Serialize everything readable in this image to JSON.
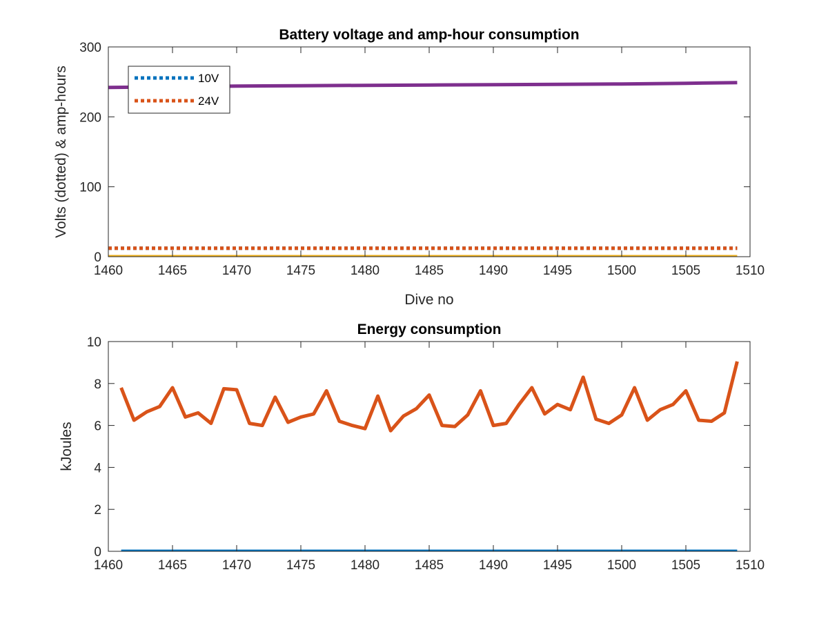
{
  "chart_data": [
    {
      "type": "line",
      "title": "Battery voltage and amp-hour consumption",
      "xlabel": "Dive no",
      "ylabel": "Volts (dotted) & amp-hours",
      "xlim": [
        1460,
        1510
      ],
      "ylim": [
        0,
        300
      ],
      "xticks": [
        1460,
        1465,
        1470,
        1475,
        1480,
        1485,
        1490,
        1495,
        1500,
        1505,
        1510
      ],
      "yticks": [
        0,
        100,
        200,
        300
      ],
      "grid": false,
      "legend": {
        "placement": "top-left",
        "entries": [
          "10V",
          "24V"
        ]
      },
      "series": [
        {
          "name": "10V",
          "style": "dotted",
          "color": "#0072BD",
          "x": [
            1460,
            1509
          ],
          "y": [
            12,
            12
          ]
        },
        {
          "name": "24V",
          "style": "dotted",
          "color": "#D95319",
          "x": [
            1460,
            1509
          ],
          "y": [
            12,
            12
          ]
        },
        {
          "style": "solid",
          "color": "#EDB120",
          "x": [
            1460,
            1509
          ],
          "y": [
            0,
            0
          ]
        },
        {
          "style": "solid",
          "color": "#7E2F8E",
          "x": [
            1460,
            1465,
            1470,
            1475,
            1480,
            1485,
            1490,
            1495,
            1500,
            1505,
            1509
          ],
          "y": [
            242,
            243,
            244,
            244.5,
            245,
            245.5,
            246,
            246.5,
            247,
            248,
            249
          ]
        }
      ]
    },
    {
      "type": "line",
      "title": "Energy consumption",
      "xlabel": "",
      "ylabel": "kJoules",
      "xlim": [
        1460,
        1510
      ],
      "ylim": [
        0,
        10
      ],
      "xticks": [
        1460,
        1465,
        1470,
        1475,
        1480,
        1485,
        1490,
        1495,
        1500,
        1505,
        1510
      ],
      "yticks": [
        0,
        2,
        4,
        6,
        8,
        10
      ],
      "grid": false,
      "series": [
        {
          "style": "solid",
          "color": "#0072BD",
          "x": [
            1461,
            1509
          ],
          "y": [
            0,
            0
          ]
        },
        {
          "style": "solid",
          "color": "#D95319",
          "x": [
            1461,
            1462,
            1463,
            1464,
            1465,
            1466,
            1467,
            1468,
            1469,
            1470,
            1471,
            1472,
            1473,
            1474,
            1475,
            1476,
            1477,
            1478,
            1479,
            1480,
            1481,
            1482,
            1483,
            1484,
            1485,
            1486,
            1487,
            1488,
            1489,
            1490,
            1491,
            1492,
            1493,
            1494,
            1495,
            1496,
            1497,
            1498,
            1499,
            1500,
            1501,
            1502,
            1503,
            1504,
            1505,
            1506,
            1507,
            1508,
            1509
          ],
          "y": [
            7.8,
            6.25,
            6.65,
            6.9,
            7.8,
            6.4,
            6.6,
            6.1,
            7.75,
            7.7,
            6.1,
            6.0,
            7.35,
            6.15,
            6.4,
            6.55,
            7.65,
            6.2,
            6.0,
            5.85,
            7.4,
            5.75,
            6.45,
            6.8,
            7.45,
            6.0,
            5.95,
            6.5,
            7.65,
            6.0,
            6.1,
            7.0,
            7.8,
            6.55,
            7.0,
            6.75,
            8.3,
            6.3,
            6.1,
            6.5,
            7.8,
            6.25,
            6.75,
            7.0,
            7.65,
            6.25,
            6.2,
            6.6,
            9.05
          ]
        }
      ]
    }
  ]
}
